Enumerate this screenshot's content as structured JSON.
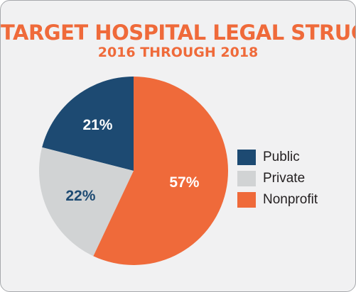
{
  "chart_data": {
    "type": "pie",
    "title": "TARGET HOSPITAL LEGAL STRUCTURE",
    "subtitle": "2016 THROUGH 2018",
    "slices": [
      {
        "label": "Public",
        "value": 21,
        "value_label": "21%",
        "color": "#1d4a72",
        "label_color": "#ffffff"
      },
      {
        "label": "Private",
        "value": 22,
        "value_label": "22%",
        "color": "#d1d3d4",
        "label_color": "#1d4a72"
      },
      {
        "label": "Nonprofit",
        "value": 57,
        "value_label": "57%",
        "color": "#ef6a3a",
        "label_color": "#ffffff"
      }
    ],
    "start_at": "12 o'clock",
    "direction": "counterclockwise",
    "legend_position": "right"
  }
}
